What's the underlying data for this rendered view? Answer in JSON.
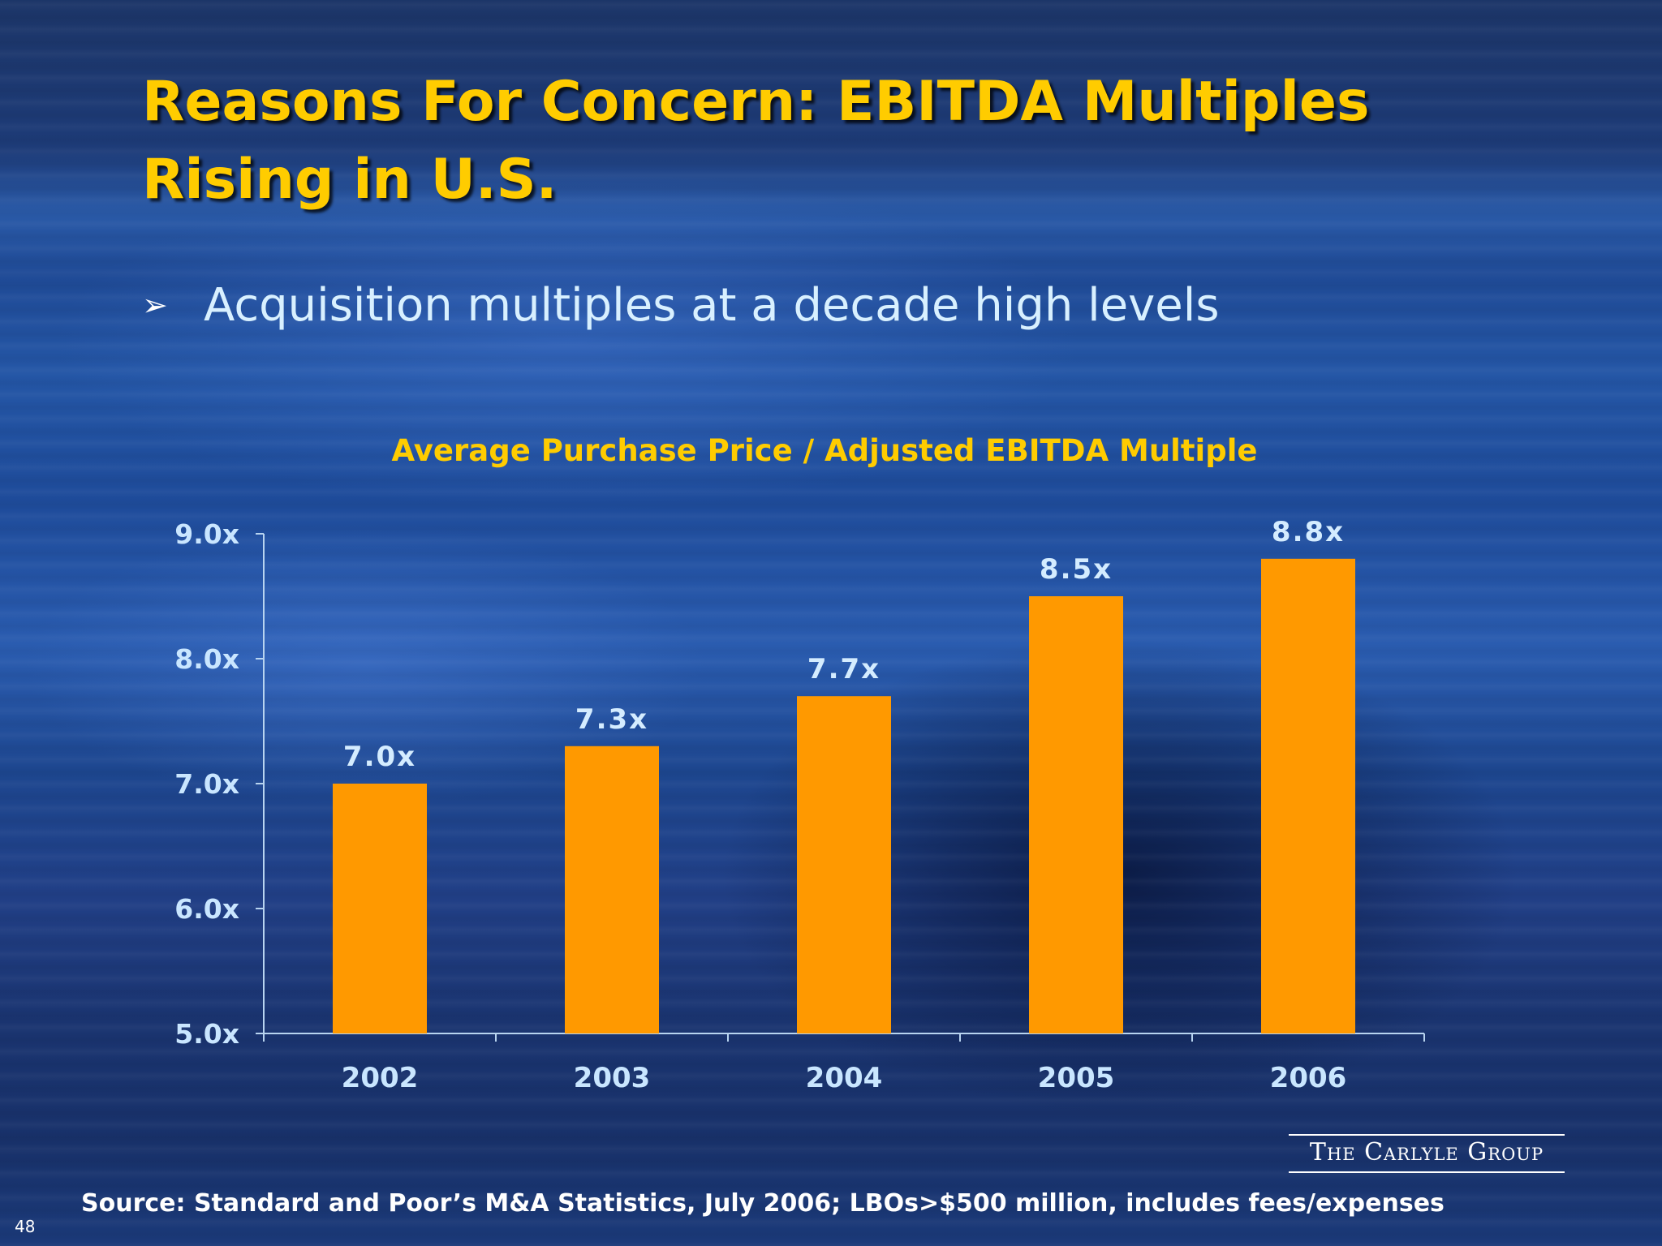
{
  "slide": {
    "title": "Reasons For Concern: EBITDA Multiples Rising in U.S.",
    "bullet_symbol": "➢",
    "bullet_text": "Acquisition multiples at a decade high levels",
    "source": "Source: Standard and Poor’s M&A Statistics, July 2006; LBOs>$500 million, includes fees/expenses",
    "page_number": "48",
    "logo_text": "The Carlyle Group"
  },
  "colors": {
    "bar": "#ff9900",
    "title": "#ffcc00",
    "axis": "#b8d4f0"
  },
  "chart_data": {
    "type": "bar",
    "title": "Average Purchase Price / Adjusted EBITDA Multiple",
    "categories": [
      "2002",
      "2003",
      "2004",
      "2005",
      "2006"
    ],
    "values": [
      7.0,
      7.3,
      7.7,
      8.5,
      8.8
    ],
    "value_labels": [
      "7.0x",
      "7.3x",
      "7.7x",
      "8.5x",
      "8.8x"
    ],
    "ylim": [
      5.0,
      9.0
    ],
    "yticks": [
      5.0,
      6.0,
      7.0,
      8.0,
      9.0
    ],
    "ytick_labels": [
      "5.0x",
      "6.0x",
      "7.0x",
      "8.0x",
      "9.0x"
    ],
    "xlabel": "",
    "ylabel": "",
    "grid": false,
    "legend": "none"
  }
}
